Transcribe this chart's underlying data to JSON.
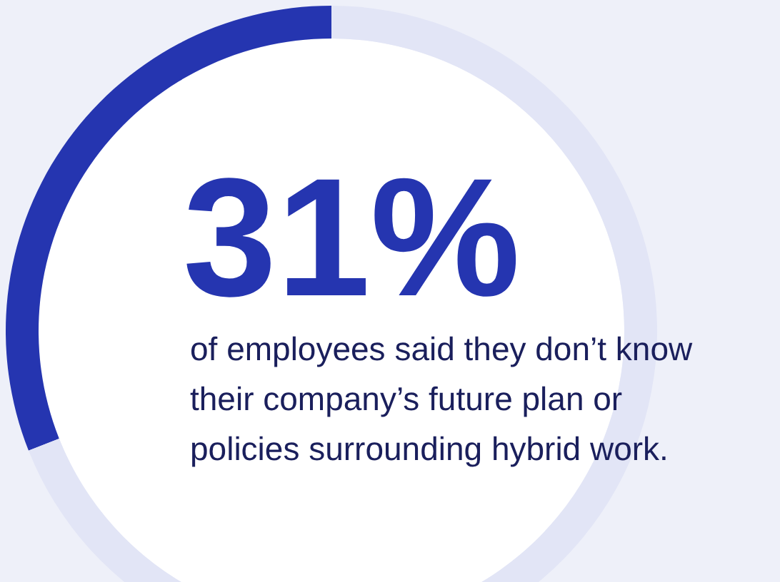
{
  "chart_data": {
    "type": "donut",
    "subtitle": "of employees said they don’t know their company’s future plan or policies surrounding hybrid work.",
    "categories": [
      null,
      null
    ],
    "values": [
      31,
      69
    ],
    "colors": [
      "#2535b0",
      "#e2e5f6"
    ],
    "value_labels": [
      "31%",
      null
    ]
  }
}
